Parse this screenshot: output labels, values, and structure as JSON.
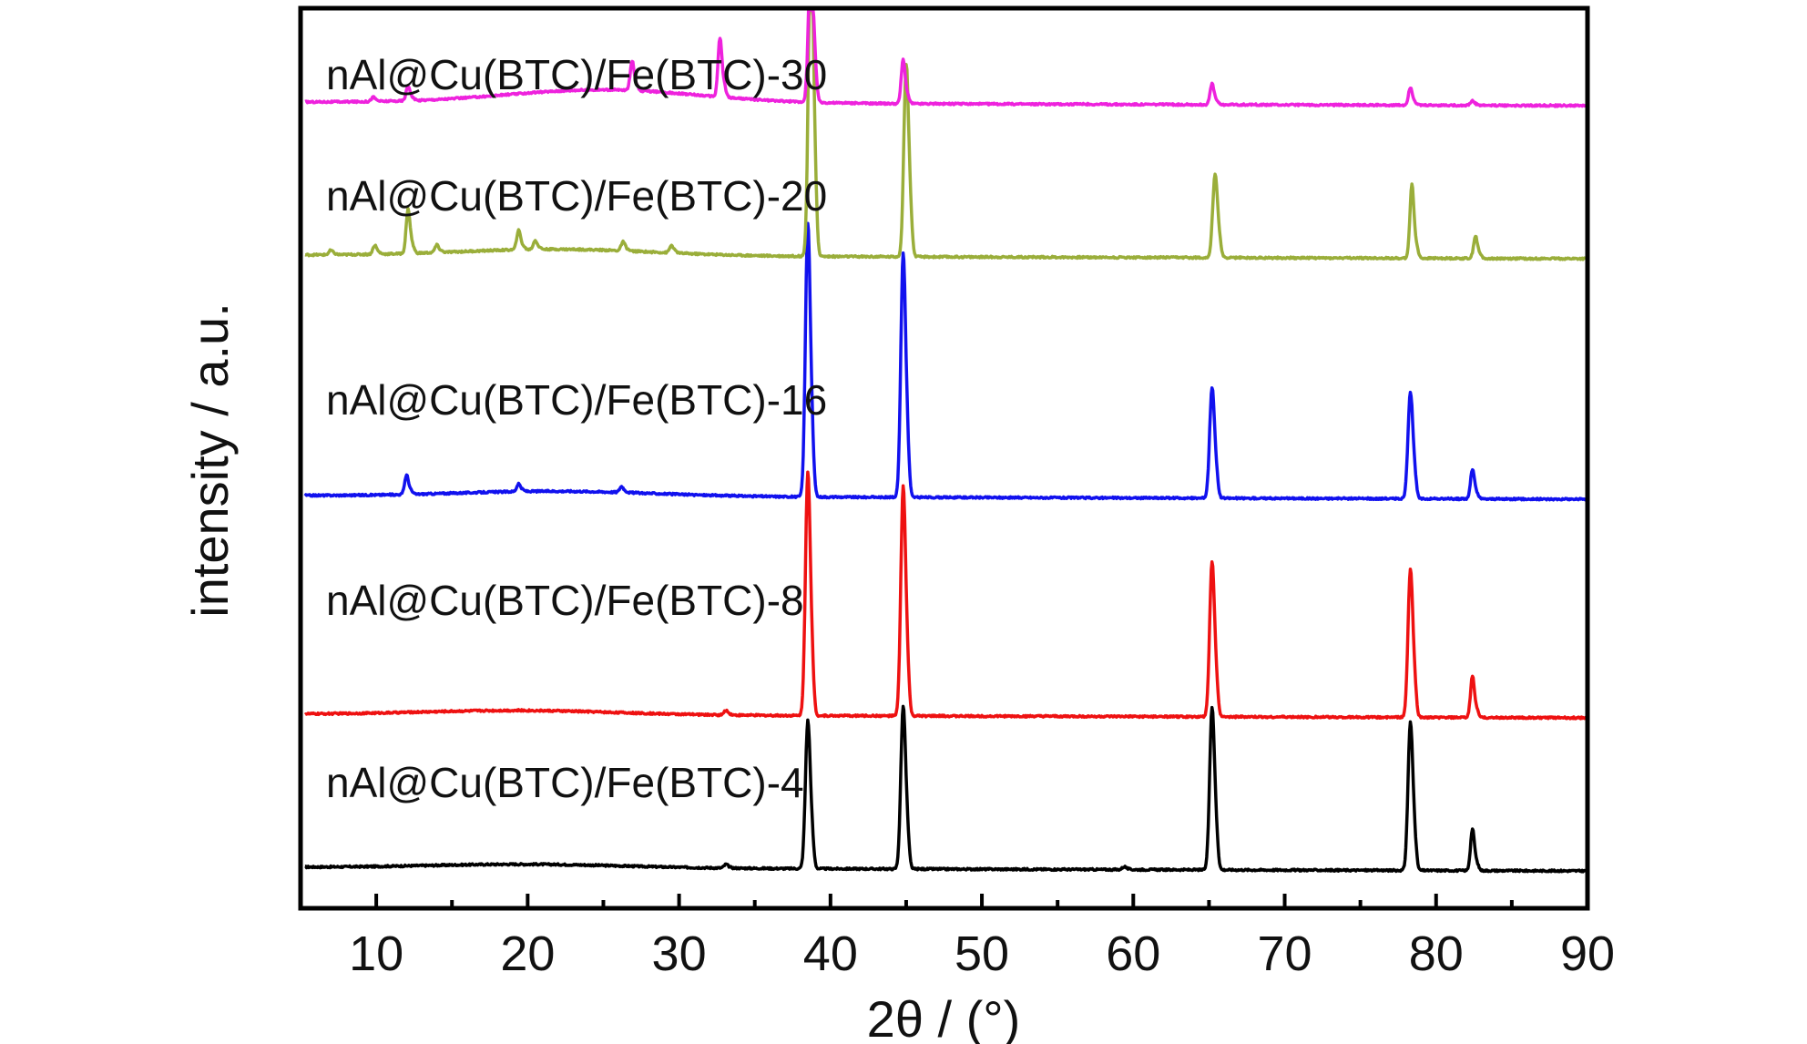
{
  "chart_data": {
    "type": "line",
    "xlabel": "2θ / (°)",
    "ylabel": "intensity / a.u.",
    "xlim": [
      5,
      90
    ],
    "x_ticks": [
      10,
      20,
      30,
      40,
      50,
      60,
      70,
      80,
      90
    ],
    "y_ticks_visible": false,
    "grid": false,
    "legend": "labels placed above each trace, left side",
    "series": [
      {
        "name": "nAl@Cu(BTC)/Fe(BTC)-4",
        "color": "#000000",
        "baseline": 0.0,
        "peaks": [
          [
            38.5,
            10.0
          ],
          [
            44.8,
            11.0
          ],
          [
            65.2,
            11.0
          ],
          [
            78.3,
            10.0
          ],
          [
            82.4,
            2.8
          ],
          [
            33.1,
            0.25
          ],
          [
            59.4,
            0.2
          ]
        ]
      },
      {
        "name": "nAl@Cu(BTC)/Fe(BTC)-8",
        "color": "#ee1111",
        "baseline": 10.5,
        "peaks": [
          [
            38.5,
            16.5
          ],
          [
            44.8,
            15.5
          ],
          [
            65.2,
            10.5
          ],
          [
            78.3,
            10.0
          ],
          [
            82.4,
            2.8
          ],
          [
            33.1,
            0.3
          ]
        ]
      },
      {
        "name": "nAl@Cu(BTC)/Fe(BTC)-16",
        "color": "#1111ee",
        "baseline": 25.5,
        "peaks": [
          [
            38.5,
            18.5
          ],
          [
            44.8,
            16.5
          ],
          [
            65.2,
            7.5
          ],
          [
            78.3,
            7.2
          ],
          [
            82.4,
            2.0
          ],
          [
            12.0,
            1.3
          ],
          [
            19.4,
            0.5
          ],
          [
            26.2,
            0.4
          ]
        ]
      },
      {
        "name": "nAl@Cu(BTC)/Fe(BTC)-20",
        "color": "#9aae3a",
        "baseline": 42.0,
        "peaks": [
          [
            38.7,
            22.5
          ],
          [
            45.0,
            13.0
          ],
          [
            65.4,
            5.6
          ],
          [
            78.4,
            5.0
          ],
          [
            82.6,
            1.5
          ],
          [
            12.1,
            3.0
          ],
          [
            9.9,
            0.6
          ],
          [
            14.0,
            0.5
          ],
          [
            19.4,
            1.3
          ],
          [
            20.5,
            0.6
          ],
          [
            26.3,
            0.6
          ],
          [
            29.5,
            0.5
          ],
          [
            7.0,
            0.3
          ]
        ]
      },
      {
        "name": "nAl@Cu(BTC)/Fe(BTC)-30",
        "color": "#ee22dd",
        "baseline": 52.5,
        "peaks": [
          [
            38.7,
            10.0
          ],
          [
            44.8,
            3.0
          ],
          [
            65.2,
            1.4
          ],
          [
            78.3,
            1.2
          ],
          [
            82.4,
            0.3
          ],
          [
            32.7,
            4.0
          ],
          [
            26.9,
            2.0
          ],
          [
            12.1,
            1.0
          ],
          [
            9.8,
            0.3
          ]
        ]
      }
    ]
  }
}
